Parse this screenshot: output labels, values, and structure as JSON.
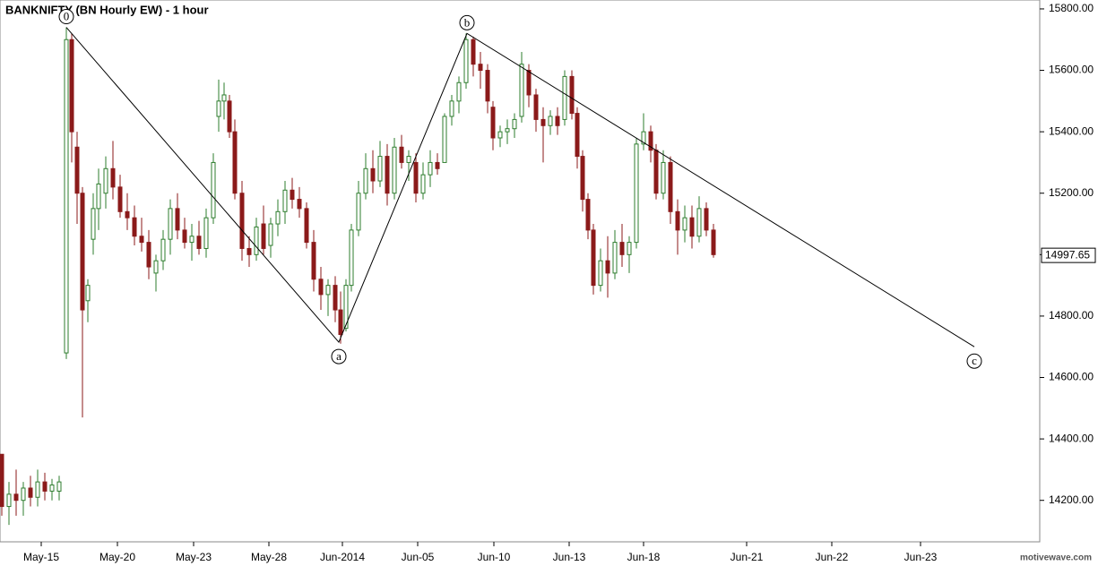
{
  "chart_data": {
    "type": "candlestick",
    "title": "BANKNIFTY (BN Hourly EW) - 1 hour",
    "watermark": "motivewave.com",
    "up_color": "#2e7d2e",
    "down_color": "#8b1a1a",
    "xlim": [
      0,
      290
    ],
    "ylim": [
      14065,
      15829
    ],
    "yticks": [
      {
        "value": 14200,
        "label": "14200.00"
      },
      {
        "value": 14400,
        "label": "14400.00"
      },
      {
        "value": 14600,
        "label": "14600.00"
      },
      {
        "value": 14800,
        "label": "14800.00"
      },
      {
        "value": 15000,
        "label": "15000.00"
      },
      {
        "value": 15200,
        "label": "15200.00"
      },
      {
        "value": 15400,
        "label": "15400.00"
      },
      {
        "value": 15600,
        "label": "15600.00"
      },
      {
        "value": 15800,
        "label": "15800.00"
      }
    ],
    "xticks": [
      {
        "value": 11.5,
        "label": "May-15"
      },
      {
        "value": 32.75,
        "label": "May-20"
      },
      {
        "value": 54,
        "label": "May-23"
      },
      {
        "value": 75,
        "label": "May-28"
      },
      {
        "value": 95.5,
        "label": "Jun-2014"
      },
      {
        "value": 116.5,
        "label": "Jun-05"
      },
      {
        "value": 137.75,
        "label": "Jun-10"
      },
      {
        "value": 158.75,
        "label": "Jun-13"
      },
      {
        "value": 179.5,
        "label": "Jun-18"
      },
      {
        "value": 208.25,
        "label": "Jun-21"
      },
      {
        "value": 232,
        "label": "Jun-22"
      },
      {
        "value": 256.75,
        "label": "Jun-23"
      }
    ],
    "last_price": {
      "value": 14997.65,
      "label": "14997.65"
    },
    "waves": [
      {
        "label": "0",
        "x": 18.5,
        "y": 15740
      },
      {
        "label": "a",
        "x": 94.5,
        "y": 14715
      },
      {
        "label": "b",
        "x": 130.25,
        "y": 15720
      },
      {
        "label": "c",
        "x": 271.75,
        "y": 14700
      }
    ],
    "candles": [
      [
        0.5,
        14350,
        14350,
        14150,
        14180
      ],
      [
        2.5,
        14180,
        14260,
        14120,
        14220
      ],
      [
        4.5,
        14220,
        14300,
        14150,
        14200
      ],
      [
        6.5,
        14200,
        14260,
        14150,
        14240
      ],
      [
        8.5,
        14240,
        14280,
        14180,
        14210
      ],
      [
        10.5,
        14210,
        14300,
        14180,
        14260
      ],
      [
        12.5,
        14260,
        14290,
        14200,
        14230
      ],
      [
        14.5,
        14230,
        14270,
        14200,
        14250
      ],
      [
        16.5,
        14230,
        14280,
        14200,
        14260
      ],
      [
        18.5,
        14680,
        15740,
        14660,
        15700
      ],
      [
        20,
        15700,
        15720,
        15300,
        15400
      ],
      [
        21.5,
        15350,
        15400,
        15100,
        15200
      ],
      [
        23,
        15200,
        15220,
        14470,
        14820
      ],
      [
        24.5,
        14850,
        14920,
        14780,
        14900
      ],
      [
        26,
        15050,
        15200,
        15000,
        15150
      ],
      [
        27.5,
        15150,
        15280,
        15080,
        15230
      ],
      [
        29.5,
        15200,
        15320,
        15150,
        15280
      ],
      [
        31.5,
        15280,
        15370,
        15180,
        15220
      ],
      [
        33.5,
        15220,
        15260,
        15120,
        15140
      ],
      [
        35.5,
        15140,
        15200,
        15080,
        15120
      ],
      [
        37.5,
        15120,
        15160,
        15030,
        15060
      ],
      [
        39.5,
        15060,
        15120,
        15010,
        15040
      ],
      [
        41.5,
        15040,
        15080,
        14920,
        14960
      ],
      [
        43.5,
        14940,
        15000,
        14880,
        14980
      ],
      [
        45.5,
        14980,
        15080,
        14950,
        15050
      ],
      [
        47.5,
        15050,
        15180,
        15000,
        15150
      ],
      [
        49.5,
        15150,
        15200,
        15050,
        15080
      ],
      [
        51.5,
        15080,
        15120,
        15020,
        15040
      ],
      [
        53.5,
        15040,
        15100,
        14980,
        15060
      ],
      [
        55.5,
        15060,
        15110,
        15000,
        15020
      ],
      [
        57.5,
        15020,
        15150,
        14990,
        15120
      ],
      [
        59.5,
        15120,
        15330,
        15100,
        15300
      ],
      [
        61,
        15450,
        15570,
        15400,
        15500
      ],
      [
        62.5,
        15500,
        15560,
        15440,
        15520
      ],
      [
        64,
        15500,
        15520,
        15380,
        15400
      ],
      [
        65.5,
        15400,
        15440,
        15180,
        15200
      ],
      [
        67.5,
        15200,
        15240,
        14980,
        15020
      ],
      [
        69.5,
        15020,
        15060,
        14960,
        15000
      ],
      [
        71.5,
        15000,
        15120,
        14980,
        15090
      ],
      [
        73.5,
        15100,
        15160,
        15000,
        15020
      ],
      [
        75.5,
        15030,
        15120,
        14990,
        15100
      ],
      [
        77.5,
        15100,
        15180,
        15060,
        15140
      ],
      [
        79.5,
        15140,
        15240,
        15100,
        15210
      ],
      [
        81.5,
        15210,
        15250,
        15150,
        15180
      ],
      [
        83.5,
        15180,
        15220,
        15120,
        15150
      ],
      [
        85.5,
        15150,
        15170,
        15020,
        15040
      ],
      [
        87.5,
        15040,
        15080,
        14880,
        14920
      ],
      [
        89.5,
        14920,
        14960,
        14820,
        14870
      ],
      [
        91.5,
        14870,
        14920,
        14800,
        14900
      ],
      [
        93.5,
        14900,
        14930,
        14780,
        14820
      ],
      [
        95,
        14820,
        14880,
        14710,
        14740
      ],
      [
        96.5,
        14760,
        14920,
        14750,
        14900
      ],
      [
        98,
        14900,
        15100,
        14880,
        15080
      ],
      [
        100,
        15080,
        15240,
        15060,
        15200
      ],
      [
        102,
        15200,
        15330,
        15180,
        15280
      ],
      [
        104,
        15280,
        15340,
        15200,
        15240
      ],
      [
        106,
        15240,
        15370,
        15220,
        15320
      ],
      [
        108,
        15320,
        15360,
        15160,
        15200
      ],
      [
        110,
        15200,
        15380,
        15180,
        15350
      ],
      [
        112,
        15350,
        15390,
        15280,
        15300
      ],
      [
        114,
        15300,
        15340,
        15240,
        15320
      ],
      [
        116,
        15300,
        15330,
        15170,
        15200
      ],
      [
        118,
        15200,
        15300,
        15180,
        15260
      ],
      [
        120,
        15260,
        15340,
        15220,
        15300
      ],
      [
        122,
        15300,
        15330,
        15260,
        15280
      ],
      [
        124,
        15300,
        15460,
        15300,
        15450
      ],
      [
        126,
        15450,
        15520,
        15420,
        15500
      ],
      [
        128,
        15500,
        15580,
        15460,
        15560
      ],
      [
        130,
        15560,
        15720,
        15540,
        15700
      ],
      [
        132,
        15700,
        15710,
        15580,
        15620
      ],
      [
        134,
        15620,
        15660,
        15540,
        15600
      ],
      [
        136,
        15600,
        15620,
        15460,
        15500
      ],
      [
        137.5,
        15480,
        15500,
        15340,
        15380
      ],
      [
        139.5,
        15380,
        15420,
        15350,
        15400
      ],
      [
        141.5,
        15400,
        15440,
        15360,
        15410
      ],
      [
        143.5,
        15410,
        15460,
        15380,
        15440
      ],
      [
        145.5,
        15450,
        15660,
        15430,
        15620
      ],
      [
        147.5,
        15600,
        15620,
        15480,
        15520
      ],
      [
        149.5,
        15520,
        15540,
        15400,
        15440
      ],
      [
        151.5,
        15440,
        15480,
        15300,
        15420
      ],
      [
        153.5,
        15420,
        15470,
        15390,
        15450
      ],
      [
        155.5,
        15450,
        15480,
        15390,
        15420
      ],
      [
        157.5,
        15440,
        15600,
        15420,
        15580
      ],
      [
        159.5,
        15580,
        15600,
        15440,
        15460
      ],
      [
        161,
        15460,
        15480,
        15280,
        15320
      ],
      [
        162.5,
        15320,
        15340,
        15140,
        15180
      ],
      [
        164,
        15180,
        15200,
        15050,
        15080
      ],
      [
        165.5,
        15080,
        15100,
        14870,
        14900
      ],
      [
        167.5,
        14900,
        15020,
        14880,
        14980
      ],
      [
        169.5,
        14980,
        15060,
        14860,
        14940
      ],
      [
        171.5,
        14940,
        15080,
        14920,
        15040
      ],
      [
        173.5,
        15040,
        15100,
        14960,
        15000
      ],
      [
        175.5,
        15000,
        15060,
        14940,
        15040
      ],
      [
        177.5,
        15040,
        15380,
        15020,
        15360
      ],
      [
        179.5,
        15360,
        15460,
        15340,
        15400
      ],
      [
        181.5,
        15400,
        15420,
        15300,
        15340
      ],
      [
        183,
        15340,
        15360,
        15180,
        15200
      ],
      [
        185,
        15200,
        15340,
        15180,
        15300
      ],
      [
        187,
        15300,
        15320,
        15100,
        15140
      ],
      [
        189,
        15140,
        15180,
        15000,
        15080
      ],
      [
        191,
        15080,
        15160,
        15040,
        15120
      ],
      [
        193,
        15120,
        15160,
        15020,
        15060
      ],
      [
        195,
        15060,
        15190,
        15040,
        15150
      ],
      [
        197,
        15150,
        15170,
        15060,
        15080
      ],
      [
        199,
        15080,
        15100,
        14990,
        15000
      ]
    ]
  }
}
